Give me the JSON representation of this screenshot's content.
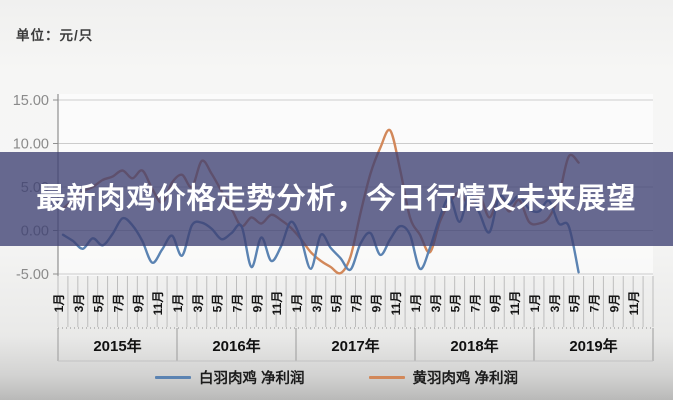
{
  "page": {
    "unit_label": "单位：元/只"
  },
  "overlay": {
    "title": "最新肉鸡价格走势分析，今日行情及未来展望"
  },
  "colors": {
    "overlay_band": "rgba(62,64,114,0.78)",
    "grid": "#cccccc",
    "axis": "#8f8f8f",
    "tick": "#bdbdbd",
    "y_label": "#8a8a8a",
    "x_label": "#161616",
    "year_label": "#101010",
    "white_broiler": "#5b83b2",
    "yellow_broiler": "#d2885a"
  },
  "chart_data": {
    "type": "line",
    "title": "",
    "ylabel_unit": "元/只",
    "ylim": [
      -5,
      15
    ],
    "grid": true,
    "legend_position": "bottom",
    "y_tick_values": [
      15,
      10,
      5,
      0,
      -5
    ],
    "y_tick_labels": [
      "15.00",
      "10.00",
      "5.00",
      "0.00",
      "-5.00"
    ],
    "x_month_labels": [
      "1月",
      "3月",
      "5月",
      "7月",
      "9月",
      "11月"
    ],
    "year_labels": [
      "2015年",
      "2016年",
      "2017年",
      "2018年",
      "2019年"
    ],
    "months_per_year": 12,
    "x_range_months": 60,
    "series": [
      {
        "name": "白羽肉鸡 净利润",
        "semantic": "white-broiler-line",
        "color": "#5b83b2",
        "start_month": "2015-01",
        "values": [
          -0.5,
          -1.2,
          -2.1,
          -0.9,
          -1.7,
          -0.4,
          1.4,
          0.6,
          -1.2,
          -3.7,
          -2.2,
          -0.6,
          -2.9,
          0.6,
          0.9,
          0.2,
          -1.0,
          -0.3,
          0.5,
          -4.2,
          -0.8,
          -3.5,
          -1.8,
          1.0,
          -1.0,
          -4.4,
          -0.5,
          -2.0,
          -3.2,
          -4.5,
          -1.5,
          -0.3,
          -2.8,
          -1.0,
          0.5,
          -0.5,
          -4.4,
          -2.0,
          1.5,
          3.8,
          1.0,
          4.2,
          2.0,
          -0.2,
          3.9,
          3.0,
          4.0,
          2.5,
          2.2,
          3.4,
          0.8,
          0.5,
          -4.8
        ]
      },
      {
        "name": "黄羽肉鸡 净利润",
        "semantic": "yellow-broiler-line",
        "color": "#d2885a",
        "start_month": "2015-01",
        "values": [
          2.5,
          3.5,
          4.5,
          5.0,
          5.8,
          6.2,
          6.9,
          6.0,
          6.9,
          4.8,
          3.2,
          5.5,
          6.4,
          5.0,
          8.0,
          6.5,
          4.5,
          2.5,
          0.5,
          1.5,
          0.8,
          1.8,
          1.2,
          0.3,
          -1.0,
          -2.5,
          -3.5,
          -4.2,
          -4.9,
          -3.0,
          2.0,
          6.5,
          9.5,
          11.5,
          7.0,
          1.5,
          -0.5,
          -2.5,
          1.0,
          3.2,
          4.4,
          2.8,
          4.0,
          1.5,
          3.8,
          2.2,
          3.5,
          1.0,
          0.8,
          1.5,
          4.0,
          8.5,
          7.8
        ]
      }
    ]
  }
}
